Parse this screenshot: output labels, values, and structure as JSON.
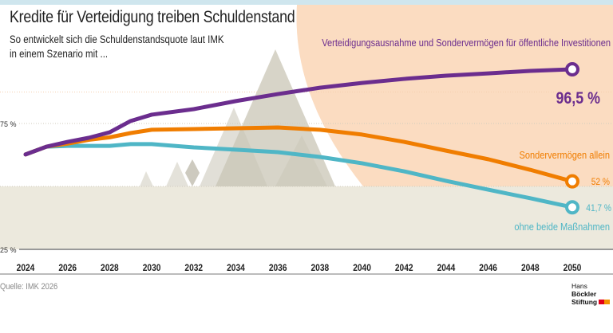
{
  "title": "Kredite für Verteidigung treiben Schuldenstand",
  "subtitle_lines": [
    "So entwickelt sich die Schuldenstandsquote laut IMK",
    "in einem Szenario mit ..."
  ],
  "source": "Quelle: IMK 2026",
  "logo": {
    "line1_light": "Hans",
    "line1_bold": "Böckler",
    "line2": "Stiftung"
  },
  "colors": {
    "purple": "#6b2d8e",
    "orange": "#f07d00",
    "cyan": "#4fb6c6",
    "peach": "#fbdcc1",
    "beige": "#ece9dd",
    "mountain": "#c9c5b6",
    "top_bar": "#cfe6ee"
  },
  "chart_data": {
    "type": "line",
    "title": "Kredite für Verteidigung treiben Schuldenstand",
    "xlabel": "",
    "ylabel": "",
    "ylim": [
      25,
      100
    ],
    "xlim": [
      2024,
      2050
    ],
    "y_ticks": [
      {
        "value": 75,
        "label": "75 %"
      },
      {
        "value": 25,
        "label": "25 %"
      }
    ],
    "x_ticks": [
      "2024",
      "2026",
      "2028",
      "2030",
      "2032",
      "2034",
      "2036",
      "2038",
      "2040",
      "2042",
      "2044",
      "2046",
      "2048",
      "2050"
    ],
    "x": [
      2024,
      2025,
      2026,
      2027,
      2028,
      2029,
      2030,
      2032,
      2034,
      2036,
      2038,
      2040,
      2042,
      2044,
      2046,
      2048,
      2050
    ],
    "series": [
      {
        "name": "Verteidigungsausnahme und Sondervermögen für öffentliche Investitionen",
        "color": "#6b2d8e",
        "end_label": "96,5 %",
        "values": [
          62.7,
          65.8,
          67.7,
          69.3,
          71.5,
          76.0,
          78.5,
          80.7,
          83.9,
          86.7,
          89.2,
          91.1,
          92.7,
          94.0,
          94.9,
          95.9,
          96.5
        ]
      },
      {
        "name": "Sondervermögen allein",
        "color": "#f07d00",
        "end_label": "52 %",
        "values": [
          62.7,
          65.8,
          67.0,
          68.5,
          69.5,
          71.2,
          72.5,
          72.8,
          73.1,
          73.4,
          72.5,
          70.6,
          67.7,
          64.2,
          60.8,
          56.6,
          52.0
        ]
      },
      {
        "name": "ohne beide Maßnahmen",
        "color": "#4fb6c6",
        "end_label": "41,7 %",
        "values": [
          62.7,
          65.8,
          66.1,
          66.1,
          66.1,
          66.8,
          66.8,
          65.5,
          64.6,
          63.6,
          61.7,
          59.2,
          56.0,
          52.2,
          48.7,
          45.3,
          41.7
        ]
      }
    ],
    "grid": true,
    "legend": "direct labels"
  }
}
